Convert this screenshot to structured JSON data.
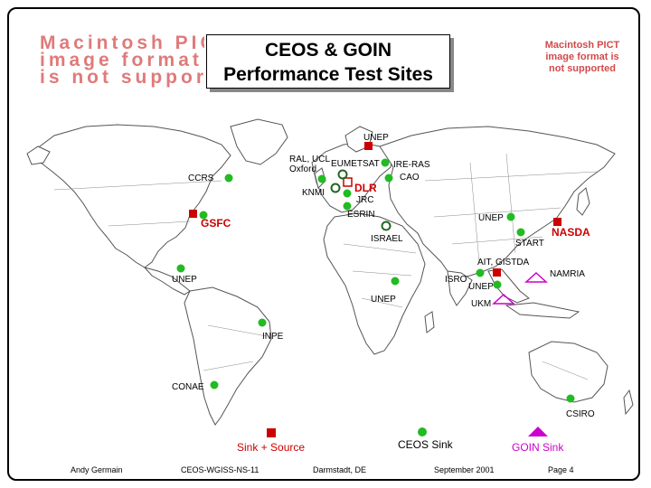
{
  "title": {
    "line1": "CEOS & GOIN",
    "line2": "Performance Test Sites"
  },
  "pict_notice_left": "Macintosh PICT\nimage format\nis not supported",
  "pict_notice_right": "Macintosh PICT image format is not supported",
  "colors": {
    "source_sink": "#cc0000",
    "ceos_sink": "#22bb22",
    "goin_sink": "#cc00cc",
    "land_outline": "#555555"
  },
  "sites": [
    {
      "label": "UNEP",
      "type": "source_sink"
    },
    {
      "label": "RAL, UCL",
      "type": "label"
    },
    {
      "label": "Oxford",
      "type": "label"
    },
    {
      "label": "EUMETSAT",
      "type": "ceos_sink"
    },
    {
      "label": "IRE-RAS",
      "type": "ceos_sink"
    },
    {
      "label": "CAO",
      "type": "ceos_sink"
    },
    {
      "label": "CCRS",
      "type": "ceos_sink"
    },
    {
      "label": "KNMI",
      "type": "ceos_sink"
    },
    {
      "label": "DLR",
      "type": "source_sink"
    },
    {
      "label": "JRC",
      "type": "ceos_sink"
    },
    {
      "label": "ESRIN",
      "type": "ceos_sink"
    },
    {
      "label": "GSFC",
      "type": "source_sink"
    },
    {
      "label": "UNEP",
      "type": "ceos_sink"
    },
    {
      "label": "NASDA",
      "type": "source_sink"
    },
    {
      "label": "START",
      "type": "ceos_sink"
    },
    {
      "label": "ISRAEL",
      "type": "ceos_sink"
    },
    {
      "label": "AIT, GISTDA",
      "type": "source_sink"
    },
    {
      "label": "NAMRIA",
      "type": "goin_sink"
    },
    {
      "label": "UNEP",
      "type": "ceos_sink"
    },
    {
      "label": "ISRO",
      "type": "ceos_sink"
    },
    {
      "label": "UNEP",
      "type": "ceos_sink"
    },
    {
      "label": "UNEP",
      "type": "ceos_sink"
    },
    {
      "label": "UKM",
      "type": "goin_sink"
    },
    {
      "label": "INPE",
      "type": "ceos_sink"
    },
    {
      "label": "CONAE",
      "type": "ceos_sink"
    },
    {
      "label": "CSIRO",
      "type": "ceos_sink"
    }
  ],
  "legend": {
    "source_sink": "Sink + Source",
    "ceos_sink": "CEOS Sink",
    "goin_sink": "GOIN Sink"
  },
  "footer": {
    "author": "Andy Germain",
    "meeting": "CEOS-WGISS-NS-11",
    "location": "Darmstadt, DE",
    "date": "September 2001",
    "page": "Page 4"
  }
}
